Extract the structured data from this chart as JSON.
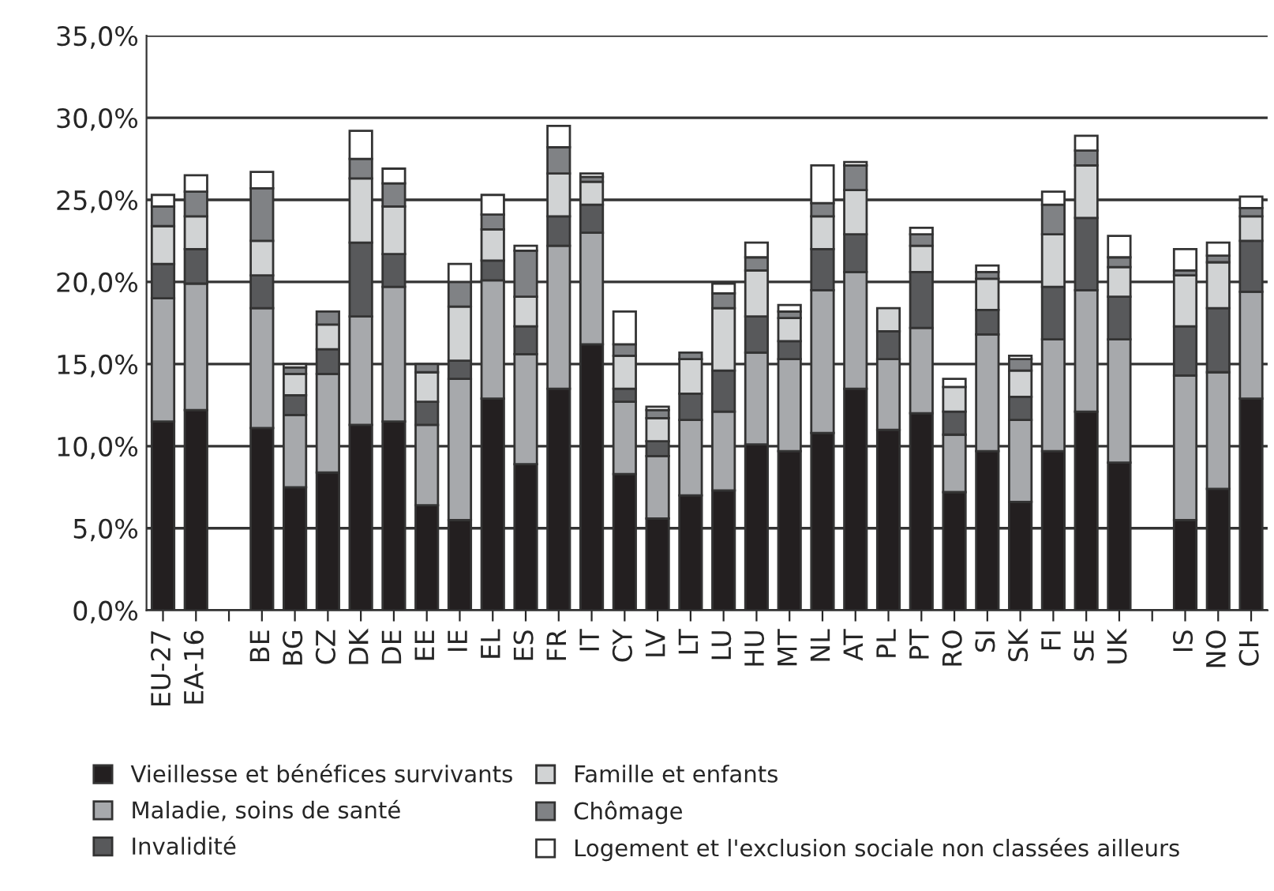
{
  "chart_data": {
    "type": "bar",
    "stacked": true,
    "categories": [
      "EU-27",
      "EA-16",
      null,
      "BE",
      "BG",
      "CZ",
      "DK",
      "DE",
      "EE",
      "IE",
      "EL",
      "ES",
      "FR",
      "IT",
      "CY",
      "LV",
      "LT",
      "LU",
      "HU",
      "MT",
      "NL",
      "AT",
      "PL",
      "PT",
      "RO",
      "SI",
      "SK",
      "FI",
      "SE",
      "UK",
      null,
      "IS",
      "NO",
      "CH"
    ],
    "series": [
      {
        "name": "Vieillesse et bénéfices survivants",
        "color": "#231f20",
        "values": [
          11.5,
          12.2,
          null,
          11.1,
          7.5,
          8.4,
          11.3,
          11.5,
          6.4,
          5.5,
          12.9,
          8.9,
          13.5,
          16.2,
          8.3,
          5.6,
          7.0,
          7.3,
          10.1,
          9.7,
          10.8,
          13.5,
          11.0,
          12.0,
          7.2,
          9.7,
          6.6,
          9.7,
          12.1,
          9.0,
          null,
          5.5,
          7.4,
          12.9
        ]
      },
      {
        "name": "Maladie, soins de santé",
        "color": "#a7a9ac",
        "values": [
          7.5,
          7.7,
          null,
          7.3,
          4.4,
          6.0,
          6.6,
          8.2,
          4.9,
          8.6,
          7.2,
          6.7,
          8.7,
          6.8,
          4.4,
          3.8,
          4.6,
          4.8,
          5.6,
          5.6,
          8.7,
          7.1,
          4.3,
          5.2,
          3.5,
          7.1,
          5.0,
          6.8,
          7.4,
          7.5,
          null,
          8.8,
          7.1,
          6.5
        ]
      },
      {
        "name": "Invalidité",
        "color": "#58595b",
        "values": [
          2.1,
          2.1,
          null,
          2.0,
          1.2,
          1.5,
          4.5,
          2.0,
          1.4,
          1.1,
          1.2,
          1.7,
          1.8,
          1.7,
          0.8,
          0.9,
          1.6,
          2.5,
          2.2,
          1.1,
          2.5,
          2.3,
          1.7,
          3.4,
          1.4,
          1.5,
          1.4,
          3.2,
          4.4,
          2.6,
          null,
          3.0,
          3.9,
          3.1
        ]
      },
      {
        "name": "Famille et enfants",
        "color": "#d1d3d4",
        "values": [
          2.3,
          2.0,
          null,
          2.1,
          1.3,
          1.5,
          3.9,
          2.9,
          1.8,
          3.3,
          1.9,
          1.8,
          2.6,
          1.4,
          2.0,
          1.4,
          2.1,
          3.8,
          2.8,
          1.4,
          2.0,
          2.7,
          1.4,
          1.6,
          1.5,
          1.9,
          1.6,
          3.2,
          3.2,
          1.8,
          null,
          3.1,
          2.8,
          1.5
        ]
      },
      {
        "name": "Chômage",
        "color": "#808285",
        "values": [
          1.2,
          1.5,
          null,
          3.2,
          0.4,
          0.8,
          1.2,
          1.4,
          0.5,
          1.5,
          0.9,
          2.8,
          1.6,
          0.3,
          0.7,
          0.5,
          0.4,
          0.9,
          0.8,
          0.4,
          0.8,
          1.5,
          null,
          0.7,
          null,
          0.4,
          0.7,
          1.8,
          0.9,
          0.6,
          null,
          0.3,
          0.4,
          0.5
        ]
      },
      {
        "name": "Logement et l'exclusion sociale non classées ailleurs",
        "color": "#ffffff",
        "values": [
          0.7,
          1.0,
          null,
          1.0,
          0.2,
          null,
          1.7,
          0.9,
          null,
          1.1,
          1.2,
          0.3,
          1.3,
          0.2,
          2.0,
          0.2,
          null,
          0.6,
          0.9,
          0.4,
          2.3,
          0.2,
          null,
          0.4,
          0.5,
          0.4,
          0.2,
          0.8,
          0.9,
          1.3,
          null,
          1.3,
          0.8,
          0.7
        ]
      }
    ],
    "ylim": [
      0,
      35
    ],
    "yticks": [
      {
        "value": 0,
        "label": "0,0%"
      },
      {
        "value": 5,
        "label": "5,0%"
      },
      {
        "value": 10,
        "label": "10,0%"
      },
      {
        "value": 15,
        "label": "15,0%"
      },
      {
        "value": 20,
        "label": "20,0%"
      },
      {
        "value": 25,
        "label": "25,0%"
      },
      {
        "value": 30,
        "label": "30,0%"
      },
      {
        "value": 35,
        "label": "35,0%"
      }
    ],
    "grid": "y",
    "legend": "bottom"
  }
}
